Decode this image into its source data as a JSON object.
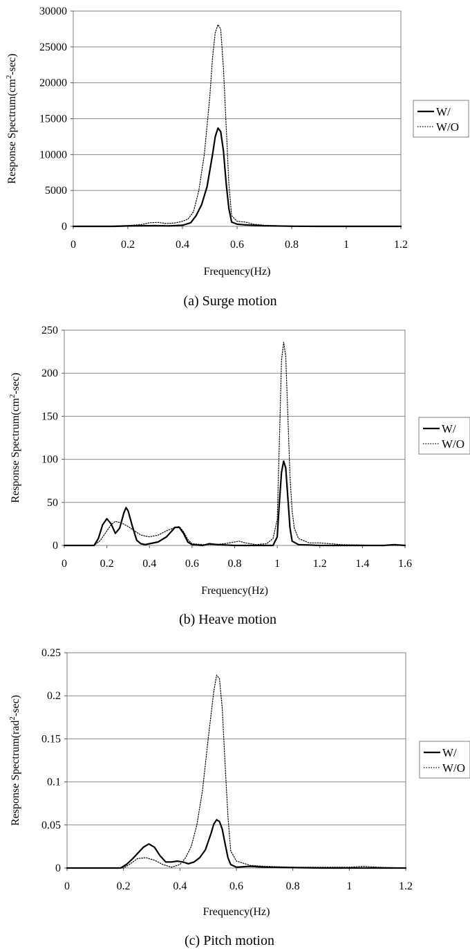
{
  "chart_data": [
    {
      "id": "surge",
      "type": "line",
      "caption": "(a) Surge motion",
      "xlabel": "Frequency(Hz)",
      "ylabel": "Response Spectrum(cm²-sec)",
      "xlim": [
        0,
        1.2
      ],
      "ylim": [
        0,
        30000
      ],
      "xticks": [
        "0",
        "0.2",
        "0.4",
        "0.6",
        "0.8",
        "1",
        "1.2"
      ],
      "yticks": [
        "0",
        "5000",
        "10000",
        "15000",
        "20000",
        "25000",
        "30000"
      ],
      "grid": "horizontal",
      "legend_position": "right",
      "series": [
        {
          "name": "W/",
          "style": "solid",
          "points": [
            [
              0.0,
              0
            ],
            [
              0.15,
              0
            ],
            [
              0.2,
              60
            ],
            [
              0.3,
              100
            ],
            [
              0.35,
              60
            ],
            [
              0.4,
              150
            ],
            [
              0.43,
              500
            ],
            [
              0.45,
              1500
            ],
            [
              0.47,
              3000
            ],
            [
              0.49,
              5500
            ],
            [
              0.51,
              10000
            ],
            [
              0.52,
              12500
            ],
            [
              0.53,
              13700
            ],
            [
              0.54,
              13200
            ],
            [
              0.55,
              10500
            ],
            [
              0.56,
              6000
            ],
            [
              0.57,
              2500
            ],
            [
              0.58,
              600
            ],
            [
              0.6,
              300
            ],
            [
              0.63,
              200
            ],
            [
              0.7,
              80
            ],
            [
              0.8,
              20
            ],
            [
              0.9,
              0
            ],
            [
              1.2,
              0
            ]
          ]
        },
        {
          "name": "W/O",
          "style": "dotted",
          "points": [
            [
              0.0,
              0
            ],
            [
              0.1,
              0
            ],
            [
              0.15,
              60
            ],
            [
              0.2,
              120
            ],
            [
              0.25,
              250
            ],
            [
              0.28,
              500
            ],
            [
              0.31,
              550
            ],
            [
              0.34,
              400
            ],
            [
              0.37,
              450
            ],
            [
              0.4,
              700
            ],
            [
              0.42,
              1000
            ],
            [
              0.44,
              2000
            ],
            [
              0.46,
              5000
            ],
            [
              0.48,
              10000
            ],
            [
              0.5,
              18000
            ],
            [
              0.51,
              23500
            ],
            [
              0.52,
              27000
            ],
            [
              0.53,
              28100
            ],
            [
              0.54,
              27500
            ],
            [
              0.55,
              22000
            ],
            [
              0.56,
              14000
            ],
            [
              0.57,
              6000
            ],
            [
              0.58,
              1500
            ],
            [
              0.6,
              700
            ],
            [
              0.63,
              600
            ],
            [
              0.66,
              300
            ],
            [
              0.7,
              150
            ],
            [
              0.8,
              50
            ],
            [
              0.9,
              0
            ],
            [
              1.2,
              0
            ]
          ]
        }
      ]
    },
    {
      "id": "heave",
      "type": "line",
      "caption": "(b) Heave motion",
      "xlabel": "Frequency(Hz)",
      "ylabel": "Response Spectrum(cm²-sec)",
      "xlim": [
        0,
        1.6
      ],
      "ylim": [
        0,
        250
      ],
      "xticks": [
        "0",
        "0.2",
        "0.4",
        "0.6",
        "0.8",
        "1",
        "1.2",
        "1.4",
        "1.6"
      ],
      "yticks": [
        "0",
        "50",
        "100",
        "150",
        "200",
        "250"
      ],
      "grid": "horizontal",
      "legend_position": "right",
      "series": [
        {
          "name": "W/",
          "style": "solid",
          "points": [
            [
              0.0,
              0
            ],
            [
              0.14,
              0
            ],
            [
              0.16,
              8
            ],
            [
              0.18,
              24
            ],
            [
              0.2,
              31
            ],
            [
              0.22,
              25
            ],
            [
              0.24,
              14
            ],
            [
              0.26,
              20
            ],
            [
              0.28,
              38
            ],
            [
              0.29,
              44
            ],
            [
              0.3,
              40
            ],
            [
              0.32,
              22
            ],
            [
              0.34,
              6
            ],
            [
              0.36,
              2
            ],
            [
              0.38,
              1
            ],
            [
              0.4,
              2
            ],
            [
              0.44,
              4
            ],
            [
              0.48,
              10
            ],
            [
              0.52,
              21
            ],
            [
              0.54,
              21
            ],
            [
              0.56,
              14
            ],
            [
              0.58,
              4
            ],
            [
              0.6,
              1
            ],
            [
              0.65,
              0
            ],
            [
              0.68,
              2
            ],
            [
              0.72,
              1
            ],
            [
              0.8,
              0
            ],
            [
              0.98,
              0
            ],
            [
              1.0,
              10
            ],
            [
              1.01,
              50
            ],
            [
              1.02,
              85
            ],
            [
              1.03,
              98
            ],
            [
              1.04,
              90
            ],
            [
              1.05,
              55
            ],
            [
              1.06,
              20
            ],
            [
              1.07,
              5
            ],
            [
              1.1,
              1
            ],
            [
              1.2,
              0
            ],
            [
              1.5,
              0
            ],
            [
              1.55,
              1
            ],
            [
              1.6,
              0
            ]
          ]
        },
        {
          "name": "W/O",
          "style": "dotted",
          "points": [
            [
              0.0,
              0
            ],
            [
              0.14,
              0
            ],
            [
              0.17,
              6
            ],
            [
              0.2,
              17
            ],
            [
              0.22,
              24
            ],
            [
              0.24,
              28
            ],
            [
              0.27,
              26
            ],
            [
              0.3,
              22
            ],
            [
              0.33,
              17
            ],
            [
              0.36,
              12
            ],
            [
              0.4,
              10
            ],
            [
              0.44,
              12
            ],
            [
              0.48,
              17
            ],
            [
              0.52,
              21
            ],
            [
              0.54,
              22
            ],
            [
              0.56,
              16
            ],
            [
              0.58,
              7
            ],
            [
              0.6,
              2
            ],
            [
              0.65,
              1
            ],
            [
              0.7,
              1
            ],
            [
              0.75,
              2
            ],
            [
              0.8,
              4
            ],
            [
              0.82,
              5
            ],
            [
              0.85,
              3
            ],
            [
              0.9,
              1
            ],
            [
              0.95,
              2
            ],
            [
              0.98,
              8
            ],
            [
              1.0,
              30
            ],
            [
              1.01,
              120
            ],
            [
              1.02,
              215
            ],
            [
              1.03,
              236
            ],
            [
              1.04,
              220
            ],
            [
              1.05,
              150
            ],
            [
              1.06,
              80
            ],
            [
              1.07,
              40
            ],
            [
              1.08,
              20
            ],
            [
              1.1,
              8
            ],
            [
              1.15,
              3
            ],
            [
              1.2,
              3
            ],
            [
              1.3,
              1
            ],
            [
              1.5,
              0
            ],
            [
              1.6,
              0
            ]
          ]
        }
      ]
    },
    {
      "id": "pitch",
      "type": "line",
      "caption": "(c) Pitch motion",
      "xlabel": "Frequency(Hz)",
      "ylabel": "Response Spectrum(rad²-sec)",
      "xlim": [
        0,
        1.2
      ],
      "ylim": [
        0,
        0.25
      ],
      "xticks": [
        "0",
        "0.2",
        "0.4",
        "0.6",
        "0.8",
        "1",
        "1.2"
      ],
      "yticks": [
        "0",
        "0.05",
        "0.1",
        "0.15",
        "0.2",
        "0.25"
      ],
      "grid": "horizontal",
      "legend_position": "right",
      "series": [
        {
          "name": "W/",
          "style": "solid",
          "points": [
            [
              0.0,
              0
            ],
            [
              0.19,
              0
            ],
            [
              0.21,
              0.004
            ],
            [
              0.23,
              0.01
            ],
            [
              0.25,
              0.017
            ],
            [
              0.27,
              0.024
            ],
            [
              0.29,
              0.028
            ],
            [
              0.31,
              0.024
            ],
            [
              0.33,
              0.014
            ],
            [
              0.35,
              0.007
            ],
            [
              0.37,
              0.007
            ],
            [
              0.39,
              0.008
            ],
            [
              0.41,
              0.007
            ],
            [
              0.43,
              0.005
            ],
            [
              0.45,
              0.007
            ],
            [
              0.47,
              0.012
            ],
            [
              0.49,
              0.021
            ],
            [
              0.51,
              0.04
            ],
            [
              0.52,
              0.051
            ],
            [
              0.53,
              0.056
            ],
            [
              0.54,
              0.054
            ],
            [
              0.55,
              0.045
            ],
            [
              0.56,
              0.028
            ],
            [
              0.57,
              0.012
            ],
            [
              0.58,
              0.004
            ],
            [
              0.6,
              0.001
            ],
            [
              0.65,
              0.002
            ],
            [
              0.7,
              0.001
            ],
            [
              0.8,
              0.0005
            ],
            [
              0.9,
              0
            ],
            [
              1.2,
              0
            ]
          ]
        },
        {
          "name": "W/O",
          "style": "dotted",
          "points": [
            [
              0.0,
              0
            ],
            [
              0.2,
              0
            ],
            [
              0.22,
              0.004
            ],
            [
              0.25,
              0.011
            ],
            [
              0.28,
              0.012
            ],
            [
              0.31,
              0.009
            ],
            [
              0.34,
              0.004
            ],
            [
              0.37,
              0.001
            ],
            [
              0.4,
              0.004
            ],
            [
              0.42,
              0.012
            ],
            [
              0.44,
              0.025
            ],
            [
              0.46,
              0.05
            ],
            [
              0.48,
              0.09
            ],
            [
              0.5,
              0.15
            ],
            [
              0.52,
              0.205
            ],
            [
              0.53,
              0.224
            ],
            [
              0.54,
              0.22
            ],
            [
              0.55,
              0.185
            ],
            [
              0.56,
              0.12
            ],
            [
              0.57,
              0.06
            ],
            [
              0.58,
              0.02
            ],
            [
              0.6,
              0.008
            ],
            [
              0.62,
              0.006
            ],
            [
              0.65,
              0.003
            ],
            [
              0.7,
              0.002
            ],
            [
              0.8,
              0.001
            ],
            [
              0.9,
              0.001
            ],
            [
              1.0,
              0.001
            ],
            [
              1.05,
              0.002
            ],
            [
              1.1,
              0.001
            ],
            [
              1.2,
              0
            ]
          ]
        }
      ]
    }
  ]
}
